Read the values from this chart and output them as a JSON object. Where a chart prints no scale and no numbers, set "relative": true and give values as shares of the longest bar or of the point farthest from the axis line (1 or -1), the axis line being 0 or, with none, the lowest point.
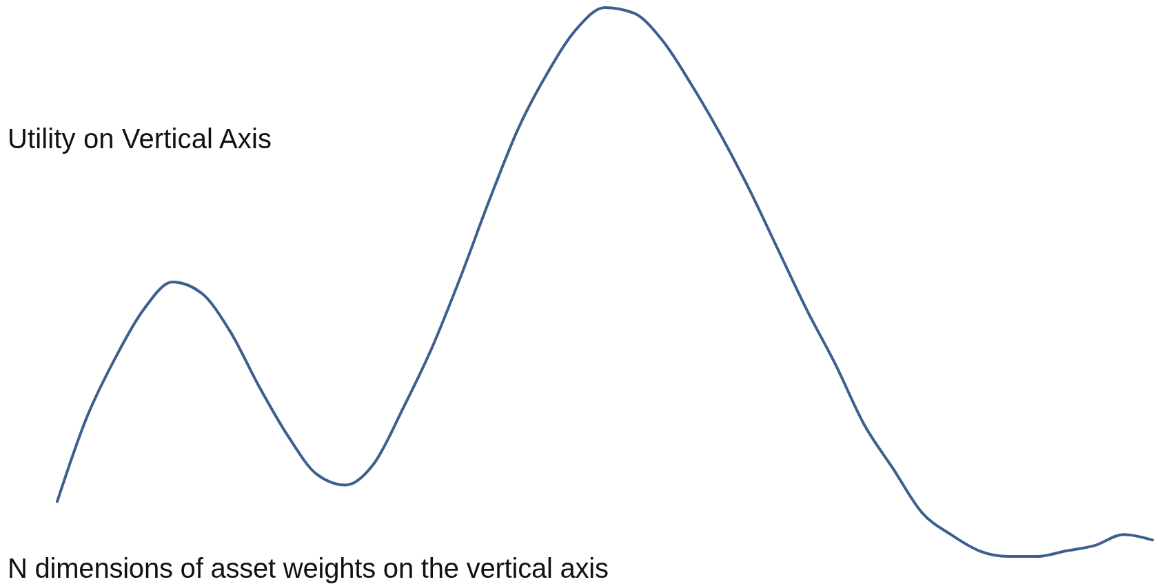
{
  "chart_data": {
    "type": "line",
    "relative": true,
    "xlabel": "N dimensions of asset weights on the vertical axis",
    "ylabel": "Utility on Vertical Axis",
    "categories": [
      null,
      null,
      null,
      null,
      null,
      null,
      null,
      null,
      null,
      null,
      null,
      null,
      null,
      null,
      null,
      null,
      null,
      null,
      null,
      null,
      null,
      null,
      null,
      null,
      null,
      null,
      null,
      null,
      null,
      null,
      null,
      null,
      null,
      null,
      null,
      null,
      null,
      null,
      null
    ],
    "series": [
      {
        "color": "#3d5f8f",
        "values": [
          0.1,
          0.25,
          0.36,
          0.45,
          0.5,
          0.48,
          0.41,
          0.31,
          0.22,
          0.15,
          0.13,
          0.17,
          0.27,
          0.38,
          0.51,
          0.65,
          0.78,
          0.88,
          0.96,
          1,
          0.99,
          0.94,
          0.86,
          0.77,
          0.67,
          0.56,
          0.45,
          0.35,
          0.24,
          0.16,
          0.08,
          0.04,
          0.01,
          0,
          0,
          0.01,
          0.02,
          0.04,
          0.03
        ]
      }
    ],
    "marker": "none",
    "line_style": "solid"
  }
}
